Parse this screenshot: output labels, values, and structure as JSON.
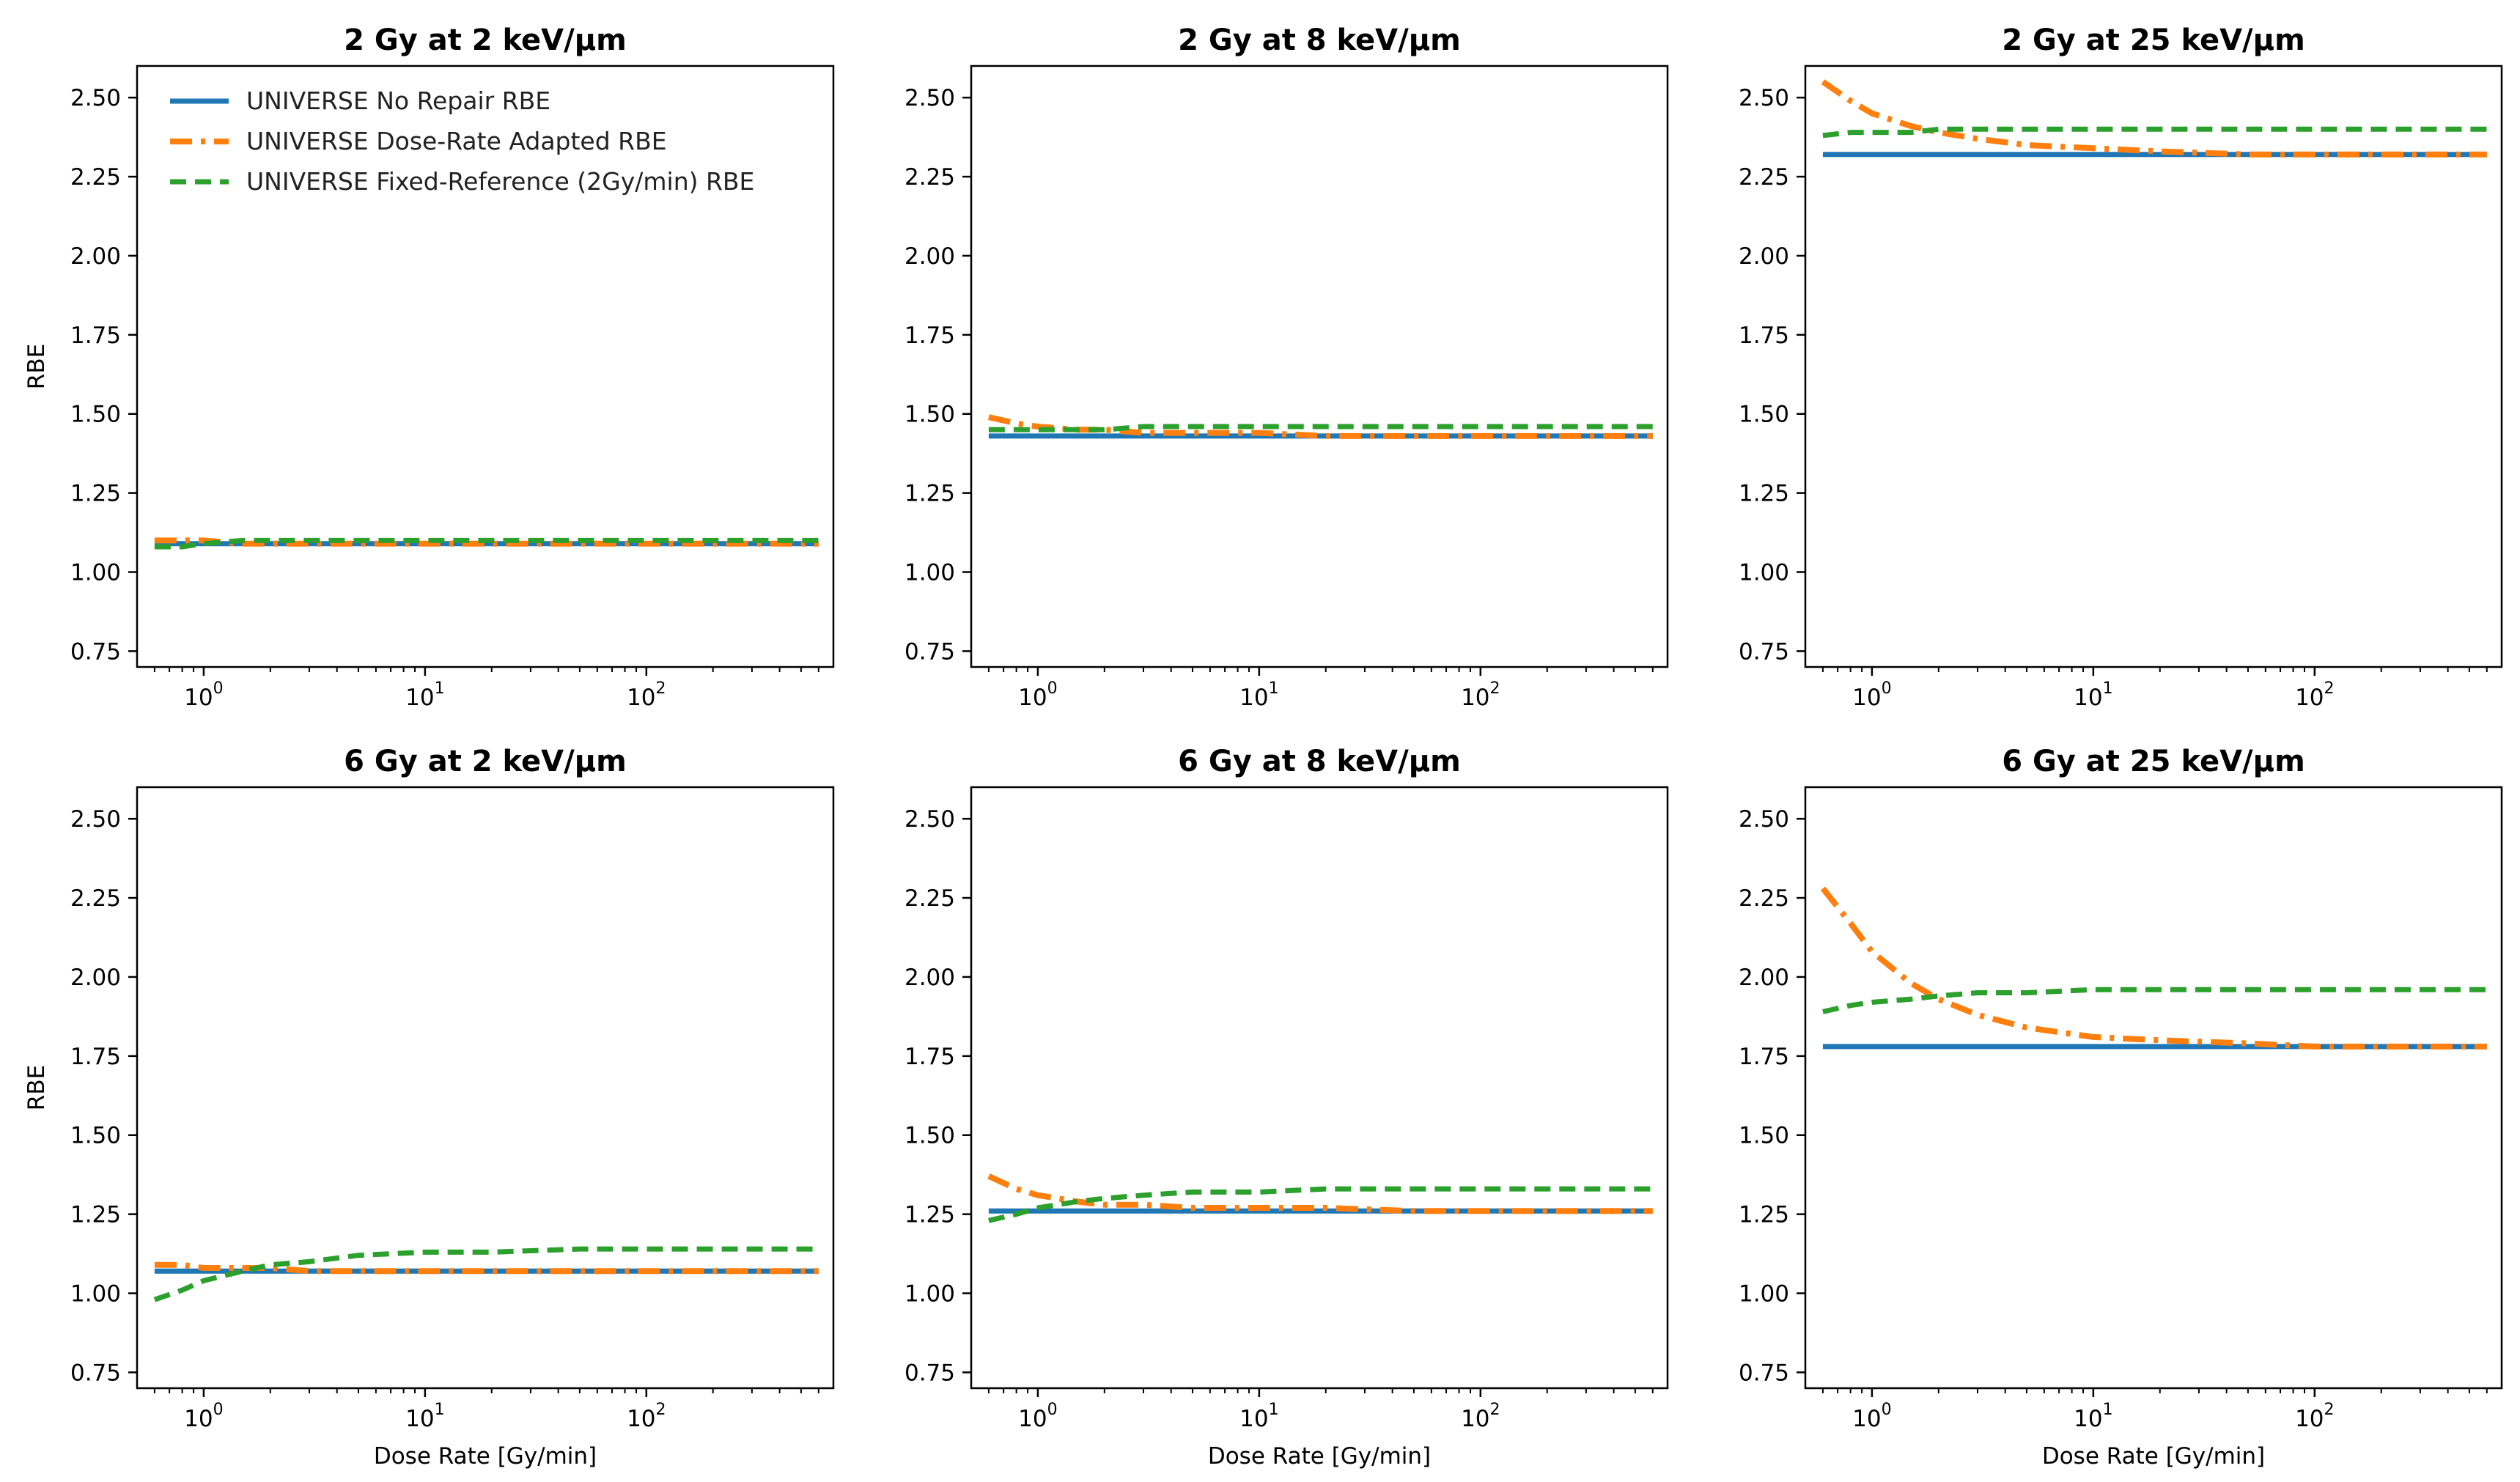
{
  "chart_data": {
    "type": "line",
    "x_scale": "log",
    "xlim": [
      0.5,
      700
    ],
    "ylim": [
      0.7,
      2.6
    ],
    "xticks": [
      1,
      10,
      100
    ],
    "xtick_labels": [
      {
        "base": "10",
        "exp": "0"
      },
      {
        "base": "10",
        "exp": "1"
      },
      {
        "base": "10",
        "exp": "2"
      }
    ],
    "yticks": [
      0.75,
      1.0,
      1.25,
      1.5,
      1.75,
      2.0,
      2.25,
      2.5
    ],
    "ytick_labels": [
      "0.75",
      "1.00",
      "1.25",
      "1.50",
      "1.75",
      "2.00",
      "2.25",
      "2.50"
    ],
    "ylabel": "RBE",
    "xlabel": "Dose Rate [Gy/min]",
    "legend": {
      "location": "upper-left",
      "entries": [
        {
          "key": "no_repair",
          "label": "UNIVERSE No Repair RBE",
          "color": "#1f77b4",
          "style": "solid"
        },
        {
          "key": "dose_rate_adapted",
          "label": "UNIVERSE Dose-Rate Adapted RBE",
          "color": "#ff7f0e",
          "style": "dashdot"
        },
        {
          "key": "fixed_reference",
          "label": "UNIVERSE Fixed-Reference (2Gy/min) RBE",
          "color": "#2ca02c",
          "style": "dashed"
        }
      ]
    },
    "x": [
      0.6,
      0.8,
      1,
      1.5,
      2,
      3,
      5,
      10,
      20,
      50,
      100,
      200,
      600
    ],
    "panels": [
      {
        "title": "2 Gy at 2 keV/µm",
        "series": {
          "no_repair": [
            1.09,
            1.09,
            1.09,
            1.09,
            1.09,
            1.09,
            1.09,
            1.09,
            1.09,
            1.09,
            1.09,
            1.09,
            1.09
          ],
          "dose_rate_adapted": [
            1.1,
            1.1,
            1.1,
            1.09,
            1.09,
            1.09,
            1.09,
            1.09,
            1.09,
            1.09,
            1.09,
            1.09,
            1.09
          ],
          "fixed_reference": [
            1.08,
            1.08,
            1.09,
            1.1,
            1.1,
            1.1,
            1.1,
            1.1,
            1.1,
            1.1,
            1.1,
            1.1,
            1.1
          ]
        }
      },
      {
        "title": "2 Gy at 8 keV/µm",
        "series": {
          "no_repair": [
            1.43,
            1.43,
            1.43,
            1.43,
            1.43,
            1.43,
            1.43,
            1.43,
            1.43,
            1.43,
            1.43,
            1.43,
            1.43
          ],
          "dose_rate_adapted": [
            1.49,
            1.47,
            1.46,
            1.45,
            1.45,
            1.44,
            1.44,
            1.44,
            1.43,
            1.43,
            1.43,
            1.43,
            1.43
          ],
          "fixed_reference": [
            1.45,
            1.45,
            1.45,
            1.45,
            1.45,
            1.46,
            1.46,
            1.46,
            1.46,
            1.46,
            1.46,
            1.46,
            1.46
          ]
        }
      },
      {
        "title": "2 Gy at 25 keV/µm",
        "series": {
          "no_repair": [
            2.32,
            2.32,
            2.32,
            2.32,
            2.32,
            2.32,
            2.32,
            2.32,
            2.32,
            2.32,
            2.32,
            2.32,
            2.32
          ],
          "dose_rate_adapted": [
            2.55,
            2.49,
            2.45,
            2.41,
            2.39,
            2.37,
            2.35,
            2.34,
            2.33,
            2.32,
            2.32,
            2.32,
            2.32
          ],
          "fixed_reference": [
            2.38,
            2.39,
            2.39,
            2.39,
            2.4,
            2.4,
            2.4,
            2.4,
            2.4,
            2.4,
            2.4,
            2.4,
            2.4
          ]
        }
      },
      {
        "title": "6 Gy at 2 keV/µm",
        "series": {
          "no_repair": [
            1.07,
            1.07,
            1.07,
            1.07,
            1.07,
            1.07,
            1.07,
            1.07,
            1.07,
            1.07,
            1.07,
            1.07,
            1.07
          ],
          "dose_rate_adapted": [
            1.09,
            1.09,
            1.08,
            1.08,
            1.08,
            1.07,
            1.07,
            1.07,
            1.07,
            1.07,
            1.07,
            1.07,
            1.07
          ],
          "fixed_reference": [
            0.98,
            1.01,
            1.04,
            1.07,
            1.09,
            1.1,
            1.12,
            1.13,
            1.13,
            1.14,
            1.14,
            1.14,
            1.14
          ]
        }
      },
      {
        "title": "6 Gy at 8 keV/µm",
        "series": {
          "no_repair": [
            1.26,
            1.26,
            1.26,
            1.26,
            1.26,
            1.26,
            1.26,
            1.26,
            1.26,
            1.26,
            1.26,
            1.26,
            1.26
          ],
          "dose_rate_adapted": [
            1.37,
            1.33,
            1.31,
            1.29,
            1.28,
            1.28,
            1.27,
            1.27,
            1.27,
            1.26,
            1.26,
            1.26,
            1.26
          ],
          "fixed_reference": [
            1.23,
            1.25,
            1.27,
            1.29,
            1.3,
            1.31,
            1.32,
            1.32,
            1.33,
            1.33,
            1.33,
            1.33,
            1.33
          ]
        }
      },
      {
        "title": "6 Gy at 25 keV/µm",
        "series": {
          "no_repair": [
            1.78,
            1.78,
            1.78,
            1.78,
            1.78,
            1.78,
            1.78,
            1.78,
            1.78,
            1.78,
            1.78,
            1.78,
            1.78
          ],
          "dose_rate_adapted": [
            2.28,
            2.17,
            2.08,
            1.98,
            1.93,
            1.88,
            1.84,
            1.81,
            1.8,
            1.79,
            1.78,
            1.78,
            1.78
          ],
          "fixed_reference": [
            1.89,
            1.91,
            1.92,
            1.93,
            1.94,
            1.95,
            1.95,
            1.96,
            1.96,
            1.96,
            1.96,
            1.96,
            1.96
          ]
        }
      }
    ]
  }
}
